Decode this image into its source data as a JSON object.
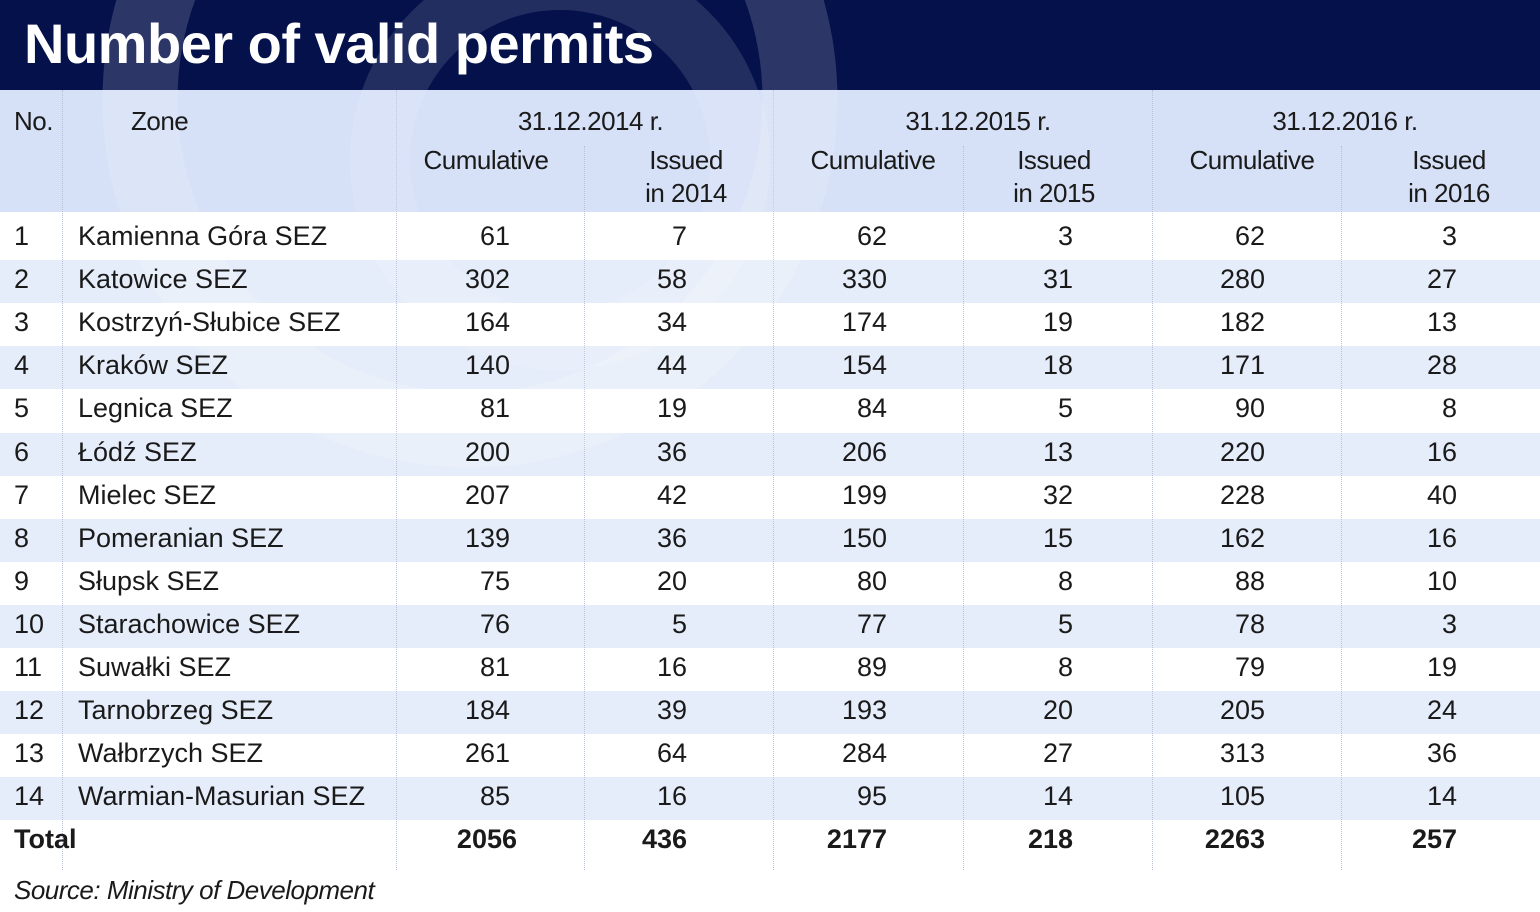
{
  "title": "Number of valid permits",
  "source": "Source: Ministry of Development",
  "colors": {
    "header": "#04114a",
    "thead": "#d6e0f7",
    "stripe": "#e6edfa",
    "text": "#1a1a1a"
  },
  "chart_data": {
    "type": "table",
    "title": "Number of valid permits",
    "header": {
      "no": "No.",
      "zone": "Zone",
      "periods": [
        "31.12.2014 r.",
        "31.12.2015 r.",
        "31.12.2016 r."
      ],
      "cumulative": "Cumulative",
      "issued_line1": "Issued",
      "issued_line2": [
        "in 2014",
        "in 2015",
        "in 2016"
      ]
    },
    "rows": [
      {
        "no": "1",
        "zone": "Kamienna Góra SEZ",
        "c2014": 61,
        "i2014": 7,
        "c2015": 62,
        "i2015": 3,
        "c2016": 62,
        "i2016": 3
      },
      {
        "no": "2",
        "zone": "Katowice SEZ",
        "c2014": 302,
        "i2014": 58,
        "c2015": 330,
        "i2015": 31,
        "c2016": 280,
        "i2016": 27
      },
      {
        "no": "3",
        "zone": "Kostrzyń-Słubice SEZ",
        "c2014": 164,
        "i2014": 34,
        "c2015": 174,
        "i2015": 19,
        "c2016": 182,
        "i2016": 13
      },
      {
        "no": "4",
        "zone": "Kraków SEZ",
        "c2014": 140,
        "i2014": 44,
        "c2015": 154,
        "i2015": 18,
        "c2016": 171,
        "i2016": 28
      },
      {
        "no": "5",
        "zone": "Legnica SEZ",
        "c2014": 81,
        "i2014": 19,
        "c2015": 84,
        "i2015": 5,
        "c2016": 90,
        "i2016": 8
      },
      {
        "no": "6",
        "zone": "Łódź SEZ",
        "c2014": 200,
        "i2014": 36,
        "c2015": 206,
        "i2015": 13,
        "c2016": 220,
        "i2016": 16
      },
      {
        "no": "7",
        "zone": "Mielec SEZ",
        "c2014": 207,
        "i2014": 42,
        "c2015": 199,
        "i2015": 32,
        "c2016": 228,
        "i2016": 40
      },
      {
        "no": "8",
        "zone": "Pomeranian SEZ",
        "c2014": 139,
        "i2014": 36,
        "c2015": 150,
        "i2015": 15,
        "c2016": 162,
        "i2016": 16
      },
      {
        "no": "9",
        "zone": "Słupsk SEZ",
        "c2014": 75,
        "i2014": 20,
        "c2015": 80,
        "i2015": 8,
        "c2016": 88,
        "i2016": 10
      },
      {
        "no": "10",
        "zone": "Starachowice SEZ",
        "c2014": 76,
        "i2014": 5,
        "c2015": 77,
        "i2015": 5,
        "c2016": 78,
        "i2016": 3
      },
      {
        "no": "11",
        "zone": "Suwałki SEZ",
        "c2014": 81,
        "i2014": 16,
        "c2015": 89,
        "i2015": 8,
        "c2016": 79,
        "i2016": 19
      },
      {
        "no": "12",
        "zone": "Tarnobrzeg SEZ",
        "c2014": 184,
        "i2014": 39,
        "c2015": 193,
        "i2015": 20,
        "c2016": 205,
        "i2016": 24
      },
      {
        "no": "13",
        "zone": "Wałbrzych SEZ",
        "c2014": 261,
        "i2014": 64,
        "c2015": 284,
        "i2015": 27,
        "c2016": 313,
        "i2016": 36
      },
      {
        "no": "14",
        "zone": "Warmian-Masurian SEZ",
        "c2014": 85,
        "i2014": 16,
        "c2015": 95,
        "i2015": 14,
        "c2016": 105,
        "i2016": 14
      }
    ],
    "total": {
      "label": "Total",
      "c2014": 2056,
      "i2014": 436,
      "c2015": 2177,
      "i2015": 218,
      "c2016": 2263,
      "i2016": 257
    }
  }
}
